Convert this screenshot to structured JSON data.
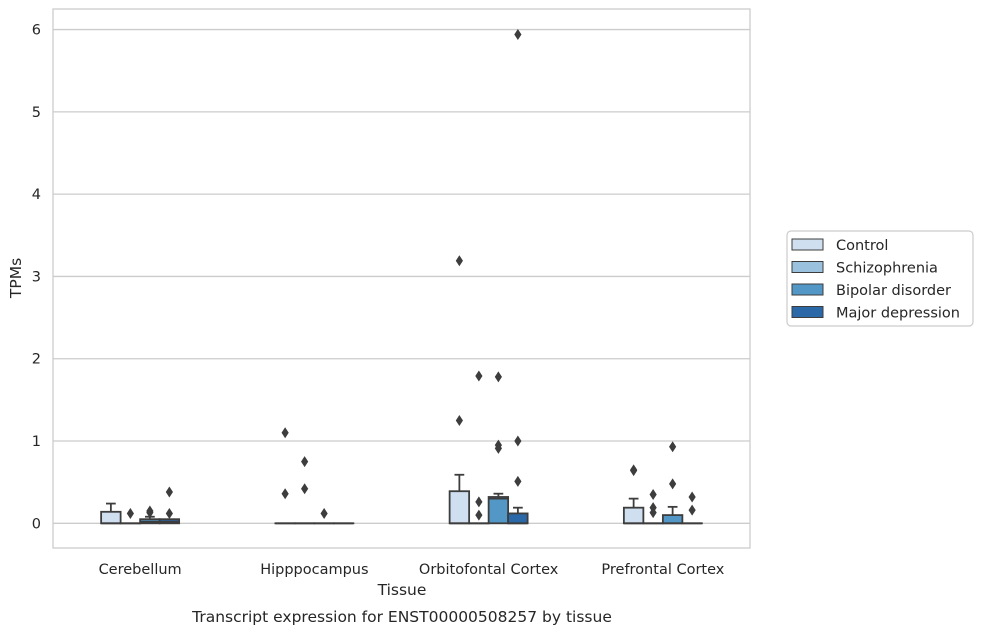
{
  "chart_data": {
    "type": "box",
    "caption": "Transcript expression for ENST00000508257 by tissue",
    "xlabel": "Tissue",
    "ylabel": "TPMs",
    "ylim": [
      -0.3,
      6.25
    ],
    "yticks": [
      0,
      1,
      2,
      3,
      4,
      5,
      6
    ],
    "grid": true,
    "legend_position": "right",
    "categories": [
      "Cerebellum",
      "Hipppocampus",
      "Orbitofontal Cortex",
      "Prefrontal Cortex"
    ],
    "series": [
      {
        "name": "Control",
        "color": "#cfdff0",
        "boxes": [
          {
            "q1": 0,
            "median": 0,
            "q3": 0.14,
            "whisker_low": 0,
            "whisker_high": 0.24,
            "outliers": []
          },
          {
            "q1": 0,
            "median": 0,
            "q3": 0,
            "whisker_low": 0,
            "whisker_high": 0,
            "outliers": [
              1.1,
              0.36
            ]
          },
          {
            "q1": 0,
            "median": 0,
            "q3": 0.39,
            "whisker_low": 0,
            "whisker_high": 0.59,
            "outliers": [
              3.19,
              1.25
            ]
          },
          {
            "q1": 0,
            "median": 0,
            "q3": 0.19,
            "whisker_low": 0,
            "whisker_high": 0.3,
            "outliers": [
              0.65,
              0.64
            ]
          }
        ]
      },
      {
        "name": "Schizophrenia",
        "color": "#9ac2de",
        "boxes": [
          {
            "q1": 0,
            "median": 0,
            "q3": 0,
            "whisker_low": 0,
            "whisker_high": 0,
            "outliers": [
              0.12
            ]
          },
          {
            "q1": 0,
            "median": 0,
            "q3": 0,
            "whisker_low": 0,
            "whisker_high": 0,
            "outliers": [
              0.75,
              0.42
            ]
          },
          {
            "q1": 0,
            "median": 0,
            "q3": 0,
            "whisker_low": 0,
            "whisker_high": 0,
            "outliers": [
              1.79,
              0.26,
              0.1
            ]
          },
          {
            "q1": 0,
            "median": 0,
            "q3": 0,
            "whisker_low": 0,
            "whisker_high": 0,
            "outliers": [
              0.35,
              0.19,
              0.13
            ]
          }
        ]
      },
      {
        "name": "Bipolar disorder",
        "color": "#5297c6",
        "boxes": [
          {
            "q1": 0,
            "median": 0.02,
            "q3": 0.05,
            "whisker_low": 0,
            "whisker_high": 0.08,
            "outliers": [
              0.15,
              0.13
            ]
          },
          {
            "q1": 0,
            "median": 0,
            "q3": 0,
            "whisker_low": 0,
            "whisker_high": 0,
            "outliers": [
              0.12
            ]
          },
          {
            "q1": 0,
            "median": 0.3,
            "q3": 0.32,
            "whisker_low": 0,
            "whisker_high": 0.36,
            "outliers": [
              1.78,
              0.95,
              0.91
            ]
          },
          {
            "q1": 0,
            "median": 0,
            "q3": 0.1,
            "whisker_low": 0,
            "whisker_high": 0.2,
            "outliers": [
              0.93,
              0.48
            ]
          }
        ]
      },
      {
        "name": "Major depression",
        "color": "#2a68a8",
        "boxes": [
          {
            "q1": 0,
            "median": 0.02,
            "q3": 0.05,
            "whisker_low": 0,
            "whisker_high": 0.05,
            "outliers": [
              0.38,
              0.12
            ]
          },
          {
            "q1": 0,
            "median": 0,
            "q3": 0,
            "whisker_low": 0,
            "whisker_high": 0,
            "outliers": []
          },
          {
            "q1": 0,
            "median": 0,
            "q3": 0.12,
            "whisker_low": 0,
            "whisker_high": 0.19,
            "outliers": [
              5.94,
              1.0,
              0.51
            ]
          },
          {
            "q1": 0,
            "median": 0,
            "q3": 0,
            "whisker_low": 0,
            "whisker_high": 0,
            "outliers": [
              0.32,
              0.16
            ]
          }
        ]
      }
    ]
  }
}
